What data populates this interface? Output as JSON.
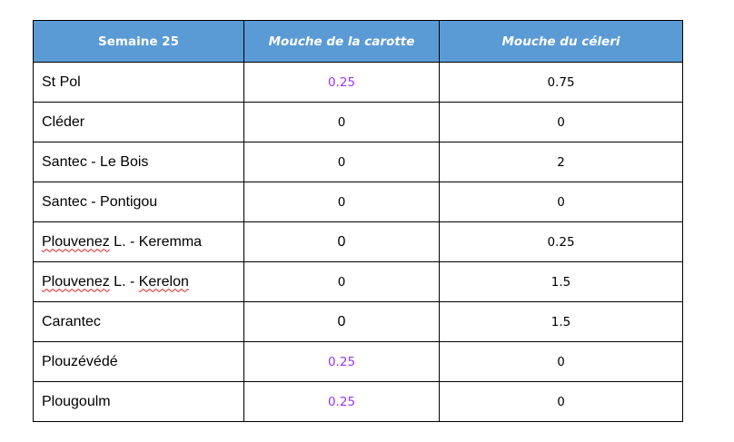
{
  "table": {
    "headers": [
      "Semaine 25",
      "Mouche de la carotte",
      "Mouche du céleri"
    ],
    "rows": [
      {
        "site": "St Pol",
        "carotte": "0.25",
        "celeri": "0.75"
      },
      {
        "site": "Cléder",
        "carotte": "0",
        "celeri": "0"
      },
      {
        "site": "Santec - Le Bois",
        "carotte": "0",
        "celeri": "2"
      },
      {
        "site": "Santec - Pontigou",
        "carotte": "0",
        "celeri": "0"
      },
      {
        "site_parts": [
          "Plouvenez",
          " L. - Keremma"
        ],
        "carotte": "0",
        "celeri": "0.25"
      },
      {
        "site_parts": [
          "Plouvenez",
          " L. - ",
          "Kerelon"
        ],
        "carotte": "0",
        "celeri": "1.5"
      },
      {
        "site": "Carantec",
        "carotte": "0",
        "celeri": "1.5"
      },
      {
        "site": "Plouzévédé",
        "carotte": "0.25",
        "celeri": "0"
      },
      {
        "site": "Plougoulm",
        "carotte": "0.25",
        "celeri": "0"
      }
    ]
  },
  "colors": {
    "header_background": "#5b9bd5",
    "header_text": "#ffffff",
    "highlight_value": "#9933ff",
    "spellcheck_underline": "#e02020"
  }
}
